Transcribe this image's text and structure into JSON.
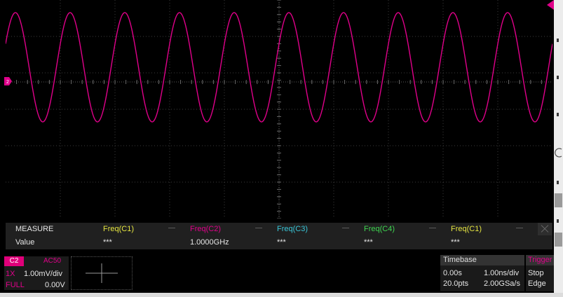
{
  "colors": {
    "trace": "#e0008a",
    "c1": "#e6e640",
    "c2": "#e0008a",
    "c3": "#39c6d8",
    "c4": "#3ed650",
    "label": "#e6e6e6"
  },
  "waveform": {
    "channel": "C2",
    "cycles_visible": 10,
    "icon_left": "channel-marker-icon",
    "icon_right": "trigger-level-marker-icon"
  },
  "measure": {
    "title": "MEASURE",
    "row_label": "Value",
    "columns": [
      {
        "name": "Freq(C1)",
        "value": "***",
        "color": "#e6e640"
      },
      {
        "name": "Freq(C2)",
        "value": "1.0000GHz",
        "color": "#e0008a"
      },
      {
        "name": "Freq(C3)",
        "value": "***",
        "color": "#39c6d8"
      },
      {
        "name": "Freq(C4)",
        "value": "***",
        "color": "#3ed650"
      },
      {
        "name": "Freq(C1)",
        "value": "***",
        "color": "#e6e640"
      }
    ]
  },
  "channel": {
    "tag": "C2",
    "coupling": "AC50",
    "probe": "1X",
    "scale": "1.00mV/div",
    "bandwidth": "FULL",
    "offset": "0.00V"
  },
  "timebase": {
    "title": "Timebase",
    "delay": "0.00s",
    "scale": "1.00ns/div",
    "points": "20.0pts",
    "sample_rate": "2.00GSa/s"
  },
  "trigger": {
    "title": "Trigger",
    "state": "Stop",
    "type": "Edge"
  }
}
